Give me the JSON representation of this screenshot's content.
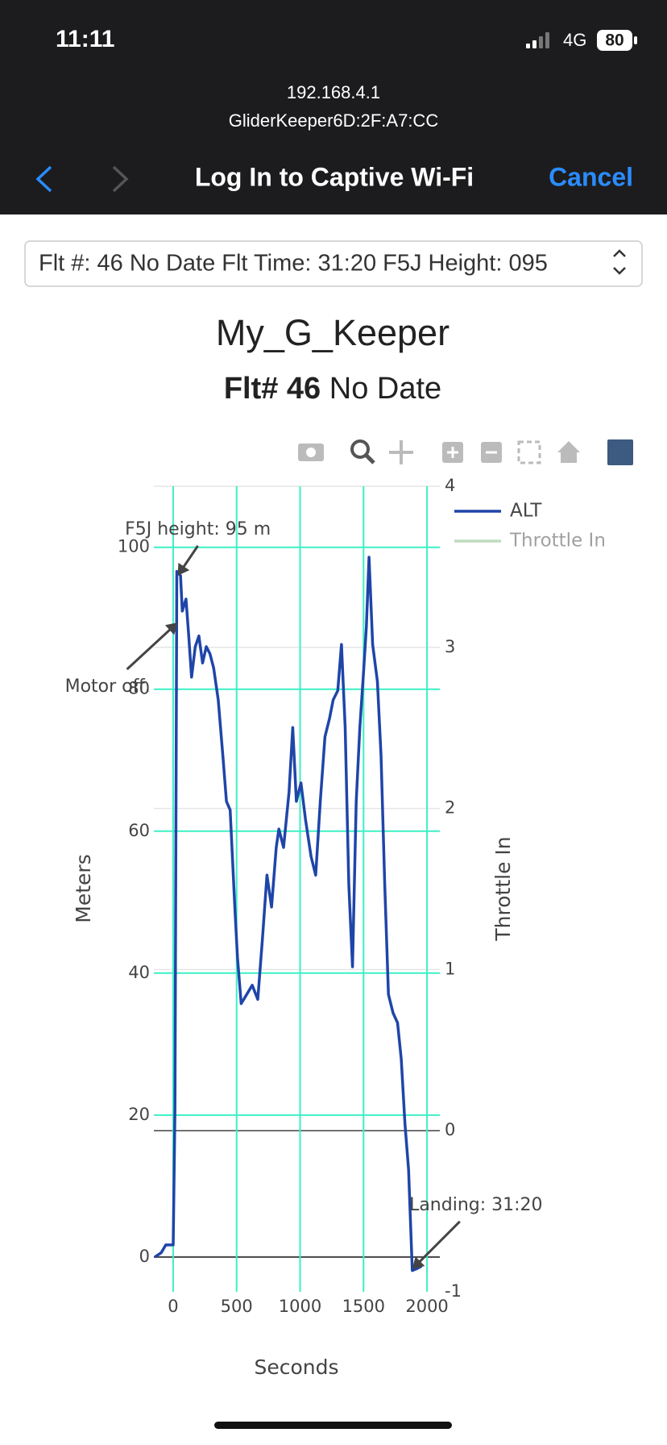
{
  "status": {
    "time": "11:11",
    "network": "4G",
    "battery": "80"
  },
  "browser": {
    "host": "192.168.4.1",
    "ssid": "GliderKeeper6D:2F:A7:CC",
    "title": "Log In to Captive Wi-Fi",
    "cancel": "Cancel"
  },
  "select": {
    "text": "Flt #: 46 No Date Flt Time: 31:20 F5J Height: 095"
  },
  "chart_data": {
    "type": "line",
    "title": "My_G_Keeper",
    "subtitle_bold": "Flt# 46",
    "subtitle": "No Date",
    "xlabel": "Seconds",
    "ylabel": "Meters",
    "y2label": "Throttle In",
    "x": [
      -145,
      -94,
      -58,
      0,
      14,
      29,
      58,
      72,
      101,
      123,
      145,
      174,
      203,
      232,
      261,
      290,
      319,
      355,
      391,
      420,
      449,
      486,
      507,
      536,
      580,
      623,
      667,
      703,
      739,
      775,
      812,
      833,
      870,
      913,
      942,
      971,
      1007,
      1043,
      1087,
      1123,
      1159,
      1196,
      1232,
      1261,
      1297,
      1326,
      1355,
      1384,
      1413,
      1442,
      1471,
      1500,
      1522,
      1543,
      1572,
      1609,
      1638,
      1667,
      1696,
      1732,
      1768,
      1797,
      1826,
      1855,
      1884,
      1913,
      1957
    ],
    "series": [
      {
        "name": "ALT",
        "color": "#1f45a8",
        "values": [
          0,
          0.6,
          1.7,
          1.7,
          21,
          96.6,
          96,
          91,
          92.7,
          87.5,
          81.7,
          86,
          87.5,
          83.7,
          86,
          85,
          83,
          78.5,
          70.7,
          64.2,
          63,
          49.3,
          42.2,
          35.7,
          37,
          38.3,
          36.3,
          44.7,
          53.8,
          49.3,
          57.7,
          60.3,
          57.7,
          65.5,
          74.6,
          64.2,
          66.8,
          61.6,
          56.4,
          53.8,
          64.2,
          73.3,
          75.9,
          78.5,
          79.8,
          86.3,
          74.6,
          52.5,
          40.9,
          64.2,
          74.6,
          82.4,
          88.8,
          98.6,
          86.3,
          81.1,
          70.7,
          52.5,
          37,
          34.4,
          33,
          27.9,
          18.8,
          12.3,
          -1.9,
          -1.7,
          -1.3
        ]
      },
      {
        "name": "Throttle In",
        "color": "#7fb87f",
        "axis": "y2",
        "visible": "legendonly"
      }
    ],
    "xlim": [
      -152,
      2101
    ],
    "xticks": [
      0,
      500,
      1000,
      1500,
      2000
    ],
    "ylim": [
      -4.9,
      108.6
    ],
    "yticks": [
      0,
      20,
      40,
      60,
      80,
      100
    ],
    "y2lim": [
      -1,
      4
    ],
    "y2ticks": [
      -1,
      0,
      1,
      2,
      3,
      4
    ],
    "grid": true,
    "grid_color": "#3cf0c4",
    "y2_grid_color": "#e6e6e6",
    "zeroline_color": "#444444",
    "annotations": [
      {
        "text": "F5J height: 95 m",
        "x": 36,
        "y": 96
      },
      {
        "text": "Motor off.",
        "x": 36,
        "y": 89.4
      },
      {
        "text": "Landing: 31:20",
        "x": 1884,
        "y": -1.7
      }
    ]
  }
}
